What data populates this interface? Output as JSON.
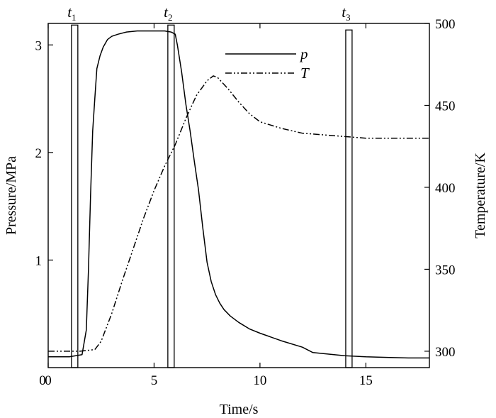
{
  "chart_data": {
    "type": "line",
    "xlabel": "Time/s",
    "ylabel_left": "Pressure/MPa",
    "ylabel_right": "Temperature/K",
    "xlim": [
      0,
      18
    ],
    "ylim_left": [
      0,
      3.2
    ],
    "ylim_right": [
      290,
      500
    ],
    "xticks": [
      0,
      5,
      10,
      15
    ],
    "yticks_left": [
      1,
      2,
      3
    ],
    "yticks_right": [
      300,
      350,
      400,
      450,
      500
    ],
    "origin_label": "0",
    "grid": false,
    "legend_position": "top-center",
    "series": [
      {
        "name": "p",
        "axis": "left",
        "style": "solid",
        "x": [
          0,
          1.0,
          1.6,
          1.8,
          1.9,
          2.0,
          2.1,
          2.2,
          2.3,
          2.45,
          2.6,
          2.8,
          3.0,
          3.3,
          3.7,
          4.2,
          5.0,
          5.5,
          5.8,
          6.0,
          6.1,
          6.3,
          6.5,
          6.7,
          6.9,
          7.1,
          7.3,
          7.5,
          7.7,
          7.9,
          8.1,
          8.3,
          8.6,
          9.0,
          9.5,
          10.0,
          11.0,
          12.0,
          12.5,
          14.0,
          15.0,
          16.0,
          17.0,
          18.0
        ],
        "y": [
          0.1,
          0.1,
          0.12,
          0.35,
          0.9,
          1.6,
          2.2,
          2.5,
          2.78,
          2.9,
          2.98,
          3.05,
          3.08,
          3.1,
          3.12,
          3.13,
          3.13,
          3.13,
          3.12,
          3.1,
          3.0,
          2.75,
          2.45,
          2.2,
          1.92,
          1.65,
          1.3,
          0.98,
          0.8,
          0.68,
          0.6,
          0.54,
          0.48,
          0.42,
          0.36,
          0.32,
          0.25,
          0.19,
          0.14,
          0.11,
          0.1,
          0.095,
          0.09,
          0.09
        ]
      },
      {
        "name": "T",
        "axis": "right",
        "style": "dash-dot-dot",
        "x": [
          0,
          1.5,
          2.2,
          2.5,
          3.0,
          3.5,
          4.0,
          4.5,
          5.0,
          5.5,
          6.0,
          6.5,
          7.0,
          7.5,
          7.8,
          8.0,
          8.5,
          9.0,
          9.5,
          10.0,
          11.0,
          12.0,
          13.0,
          14.0,
          15.0,
          16.0,
          17.0,
          18.0
        ],
        "y": [
          300,
          300,
          301,
          306,
          323,
          343,
          362,
          381,
          398,
          413,
          426,
          442,
          456,
          465,
          468,
          467,
          460,
          452,
          445,
          440,
          436,
          433,
          432,
          431,
          430,
          430,
          430,
          430
        ]
      }
    ],
    "markers": [
      {
        "name": "t",
        "sub": "1",
        "x0": 1.1,
        "x1": 1.4,
        "top_right": 499
      },
      {
        "name": "t",
        "sub": "2",
        "x0": 5.65,
        "x1": 5.95,
        "top_right": 499
      },
      {
        "name": "t",
        "sub": "3",
        "x0": 14.05,
        "x1": 14.35,
        "top_right": 496
      }
    ]
  }
}
